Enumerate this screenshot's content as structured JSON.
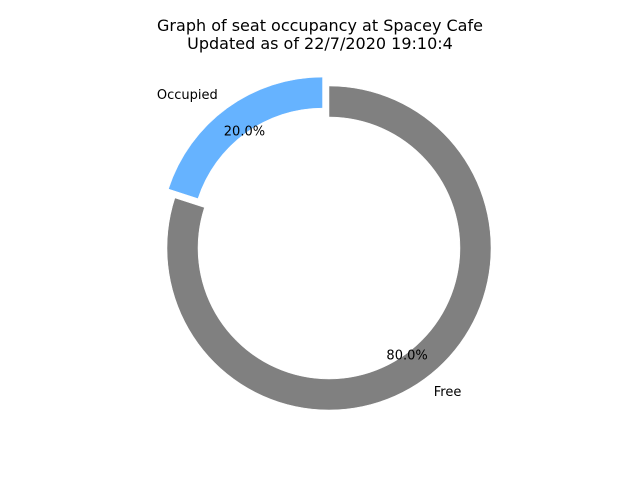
{
  "chart_data": {
    "type": "pie",
    "style": "donut",
    "title": [
      "Graph of seat occupancy at Spacey Cafe",
      "Updated as of 22/7/2020 19:10:4"
    ],
    "slices": [
      {
        "label": "Occupied",
        "value": 20.0,
        "pct_label": "20.0%",
        "color": "#66b3ff",
        "exploded": true
      },
      {
        "label": "Free",
        "value": 80.0,
        "pct_label": "80.0%",
        "color": "#808080",
        "exploded": false
      }
    ],
    "start_angle_deg": 90,
    "direction": "counterclockwise",
    "legend": "none"
  }
}
